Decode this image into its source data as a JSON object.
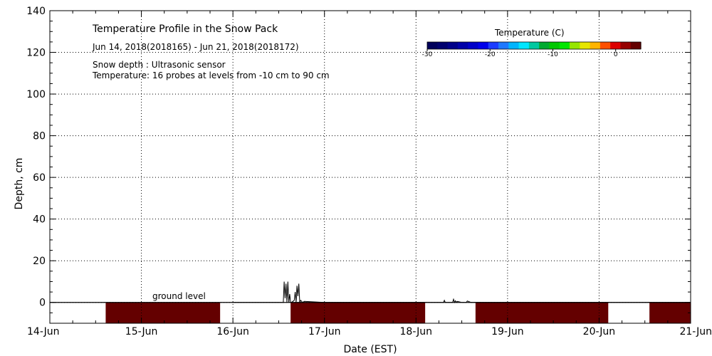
{
  "chart_data": {
    "type": "area",
    "title": "Temperature Profile in the Snow Pack",
    "date_range": "Jun 14, 2018(2018165) - Jun 21, 2018(2018172)",
    "notes": [
      "Snow depth : Ultrasonic sensor",
      "Temperature: 16 probes at levels from -10 cm to 90 cm"
    ],
    "xlabel": "Date (EST)",
    "ylabel": "Depth, cm",
    "x_ticks": [
      "14-Jun",
      "15-Jun",
      "16-Jun",
      "17-Jun",
      "18-Jun",
      "19-Jun",
      "20-Jun",
      "21-Jun"
    ],
    "xlim": [
      0,
      7
    ],
    "ylim": [
      -10,
      140
    ],
    "y_ticks": [
      0,
      20,
      40,
      60,
      80,
      100,
      120,
      140
    ],
    "grid": true,
    "ground_label": "ground level",
    "colorbar": {
      "title": "Temperature (C)",
      "ticks": [
        "-30",
        "-20",
        "-10",
        "0"
      ],
      "range": [
        -30,
        4
      ],
      "colors": [
        "#00005a",
        "#00006e",
        "#000088",
        "#0000a8",
        "#0000c8",
        "#0000ea",
        "#1c3cff",
        "#1e78ff",
        "#00b4ff",
        "#00e6ff",
        "#00c8a0",
        "#00aa30",
        "#00c800",
        "#00e600",
        "#96e600",
        "#e6e600",
        "#ffb400",
        "#ff5000",
        "#dc0000",
        "#960000",
        "#640000"
      ]
    },
    "ground_segments": [
      {
        "start": 0.61,
        "end": 1.86,
        "temp": "warm"
      },
      {
        "start": 2.63,
        "end": 4.1,
        "temp": "warm"
      },
      {
        "start": 4.65,
        "end": 6.1,
        "temp": "warm"
      },
      {
        "start": 6.55,
        "end": 7.0,
        "temp": "warm"
      }
    ],
    "snow_depth": {
      "x": [
        2.0,
        2.55,
        2.56,
        2.57,
        2.58,
        2.59,
        2.6,
        2.61,
        2.62,
        2.63,
        2.64,
        2.67,
        2.68,
        2.69,
        2.7,
        2.71,
        2.72,
        2.73,
        2.74,
        2.76,
        2.78,
        3.0,
        4.3,
        4.31,
        4.32,
        4.4,
        4.41,
        4.42,
        4.43,
        4.44,
        4.45,
        4.5,
        4.55,
        4.56,
        4.6,
        7.0
      ],
      "y": [
        0,
        0,
        10,
        2,
        9,
        0,
        10,
        0,
        4,
        0,
        0,
        1,
        5,
        0,
        8,
        3,
        9,
        0,
        1,
        0,
        0.5,
        0,
        0,
        1,
        0,
        0,
        1.5,
        0,
        0.8,
        0,
        0.5,
        0,
        0,
        0.7,
        0,
        0
      ]
    }
  }
}
